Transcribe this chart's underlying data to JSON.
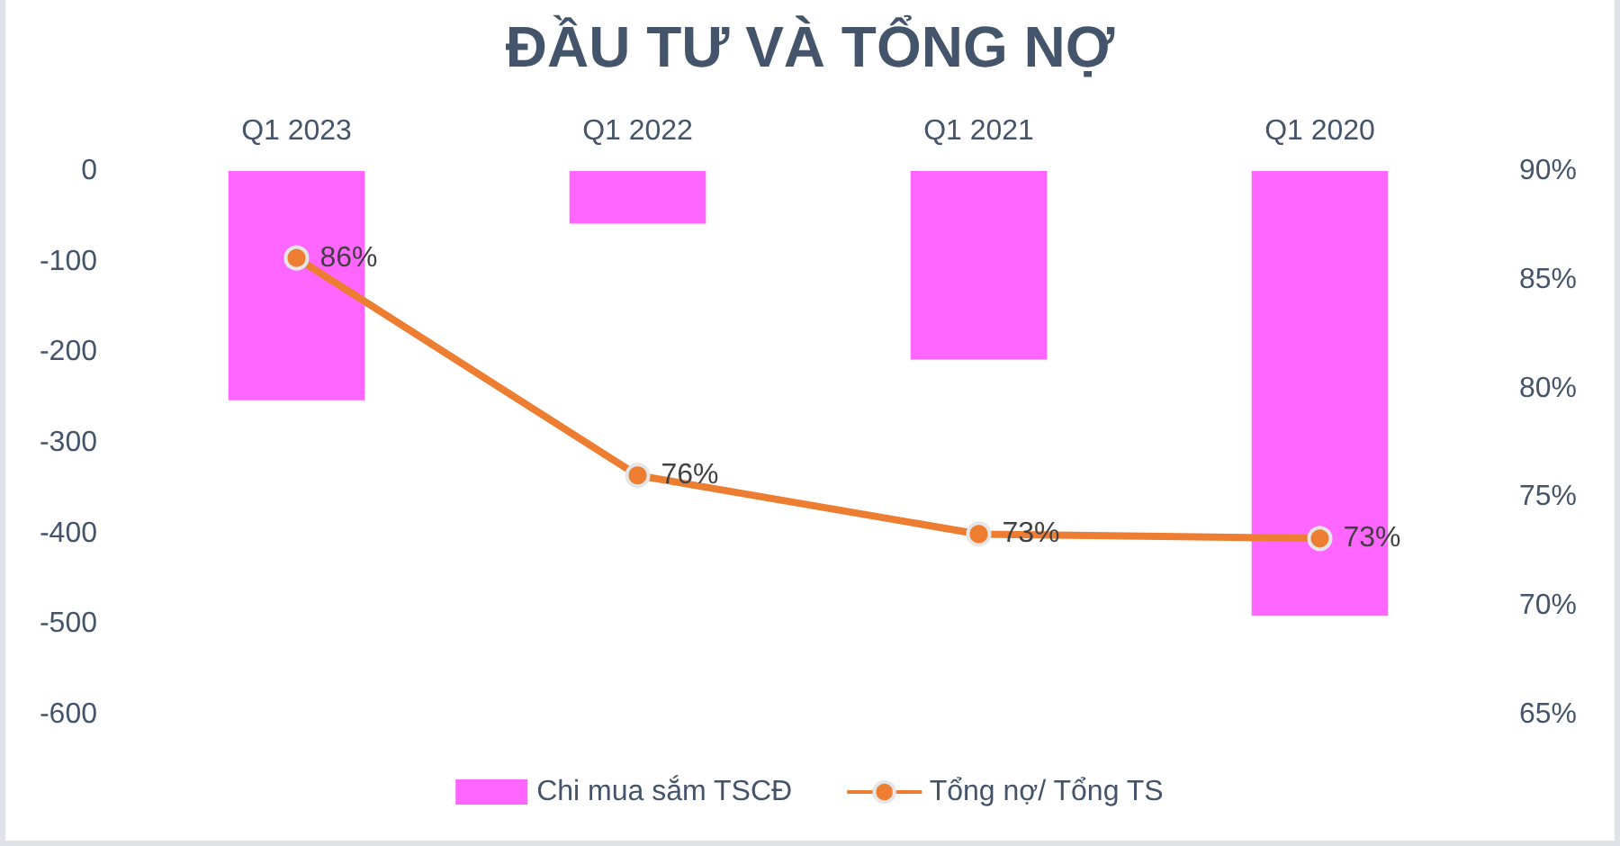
{
  "chart_data": {
    "type": "bar",
    "title": "ĐẦU TƯ VÀ TỔNG NỢ",
    "categories": [
      "Q1 2023",
      "Q1 2022",
      "Q1 2021",
      "Q1 2020"
    ],
    "series": [
      {
        "name": "Chi mua sắm TSCĐ",
        "color": "#ff66ff",
        "values": [
          -253,
          -58,
          -208,
          -491
        ]
      },
      {
        "name": "Tổng nợ/ Tổng TS",
        "type": "line",
        "axis": "y2",
        "color": "#ed7d31",
        "marker": "circle",
        "values": [
          86,
          76,
          73.3,
          73.1
        ],
        "value_labels": [
          "86%",
          "76%",
          "73%",
          "73%"
        ]
      }
    ],
    "ylim": [
      -600,
      0
    ],
    "yticks": [
      -600,
      -500,
      -400,
      -300,
      -200,
      -100,
      0
    ],
    "y2lim": [
      65,
      90
    ],
    "y2ticks": [
      {
        "value": 65,
        "label": "65%"
      },
      {
        "value": 70,
        "label": "70%"
      },
      {
        "value": 75,
        "label": "75%"
      },
      {
        "value": 80,
        "label": "80%"
      },
      {
        "value": 85,
        "label": "85%"
      },
      {
        "value": 90,
        "label": "90%"
      }
    ],
    "legend": "bottom"
  }
}
